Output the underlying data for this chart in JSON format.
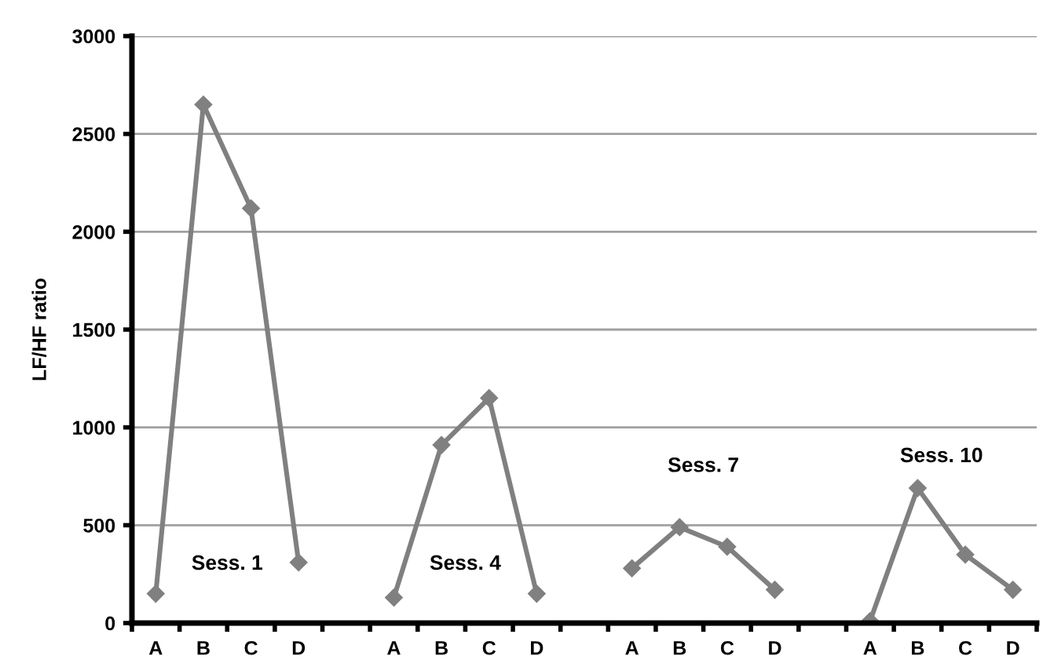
{
  "chart_data": {
    "type": "line",
    "ylabel": "LF/HF ratio",
    "categories": [
      "A",
      "B",
      "C",
      "D",
      null,
      "A",
      "B",
      "C",
      "D",
      null,
      "A",
      "B",
      "C",
      "D",
      null,
      "A",
      "B",
      "C",
      "D"
    ],
    "series": [
      {
        "color": "#808080",
        "values": [
          150,
          2650,
          2120,
          310,
          null,
          130,
          910,
          1150,
          150,
          null,
          280,
          490,
          390,
          170,
          null,
          10,
          690,
          350,
          170
        ]
      }
    ],
    "ylim": [
      0,
      3000
    ],
    "yticks": [
      0,
      500,
      1000,
      1500,
      2000,
      2500,
      3000
    ],
    "grid": "y",
    "marker": "diamond",
    "line_style": "solid",
    "annotations": [
      "Sess. 1",
      "Sess. 4",
      "Sess. 7",
      "Sess. 10"
    ]
  }
}
